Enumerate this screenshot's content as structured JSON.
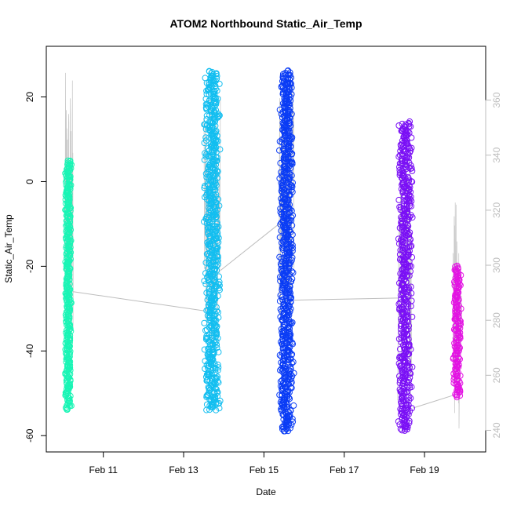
{
  "chart_data": {
    "type": "scatter",
    "title": "ATOM2 Northbound Static_Air_Temp",
    "xlabel": "Date",
    "ylabel": "Static_Air_Temp",
    "xticks": [
      {
        "value": "2016-02-11",
        "label": "Feb 11"
      },
      {
        "value": "2016-02-13",
        "label": "Feb 13"
      },
      {
        "value": "2016-02-15",
        "label": "Feb 15"
      },
      {
        "value": "2016-02-17",
        "label": "Feb 17"
      },
      {
        "value": "2016-02-19",
        "label": "Feb 19"
      }
    ],
    "xlim": [
      "2016-02-09 20:00",
      "2016-02-20 06:00"
    ],
    "ylim": [
      -62,
      29
    ],
    "yticks": [
      20,
      0,
      -20,
      -40,
      -60
    ],
    "y2lim": [
      235,
      375
    ],
    "y2ticks": [
      360,
      340,
      320,
      300,
      280,
      260,
      240
    ],
    "y2_color": "#bdbdbd",
    "grid": false,
    "legend": "none",
    "series": [
      {
        "color": "#19f5b5",
        "x": [
          "2016-02-10 01:00",
          "2016-02-10 05:00"
        ],
        "y": [
          -54,
          5
        ],
        "density": 0.8
      },
      {
        "color": "#13bef0",
        "x": [
          "2016-02-13 12:00",
          "2016-02-13 22:00"
        ],
        "y": [
          -54,
          26
        ],
        "density": 1.0
      },
      {
        "color": "#0a3cf5",
        "x": [
          "2016-02-15 09:00",
          "2016-02-15 18:00"
        ],
        "y": [
          -59,
          26
        ],
        "density": 1.0
      },
      {
        "color": "#7a10f5",
        "x": [
          "2016-02-18 08:00",
          "2016-02-18 17:00"
        ],
        "y": [
          -59,
          14
        ],
        "density": 0.9
      },
      {
        "color": "#e313e3",
        "x": [
          "2016-02-19 17:00",
          "2016-02-19 22:00"
        ],
        "y": [
          -51,
          -20
        ],
        "density": 0.7
      }
    ],
    "secondary_line": {
      "color": "#bdbdbd",
      "spikes": [
        {
          "x": [
            "2016-02-10 01:00",
            "2016-02-10 06:00"
          ],
          "y": [
            -52,
            26
          ]
        },
        {
          "x": [
            "2016-02-13 12:00",
            "2016-02-13 22:00"
          ],
          "y": [
            -40,
            23
          ]
        },
        {
          "x": [
            "2016-02-15 09:00",
            "2016-02-15 18:00"
          ],
          "y": [
            -41,
            26
          ]
        },
        {
          "x": [
            "2016-02-18 08:00",
            "2016-02-18 17:00"
          ],
          "y": [
            -52,
            12
          ]
        },
        {
          "x": [
            "2016-02-19 17:00",
            "2016-02-19 22:00"
          ],
          "y": [
            -60,
            -4
          ]
        }
      ],
      "connectors": [
        {
          "from": [
            "2016-02-10 06:00",
            -26
          ],
          "to": [
            "2016-02-13 12:00",
            -30.5
          ]
        },
        {
          "from": [
            "2016-02-13 22:00",
            -21
          ],
          "to": [
            "2016-02-15 09:00",
            -10
          ]
        },
        {
          "from": [
            "2016-02-15 18:00",
            -28
          ],
          "to": [
            "2016-02-18 08:00",
            -27.5
          ]
        },
        {
          "from": [
            "2016-02-18 17:00",
            -53.5
          ],
          "to": [
            "2016-02-19 17:00",
            -50.5
          ]
        }
      ]
    }
  }
}
